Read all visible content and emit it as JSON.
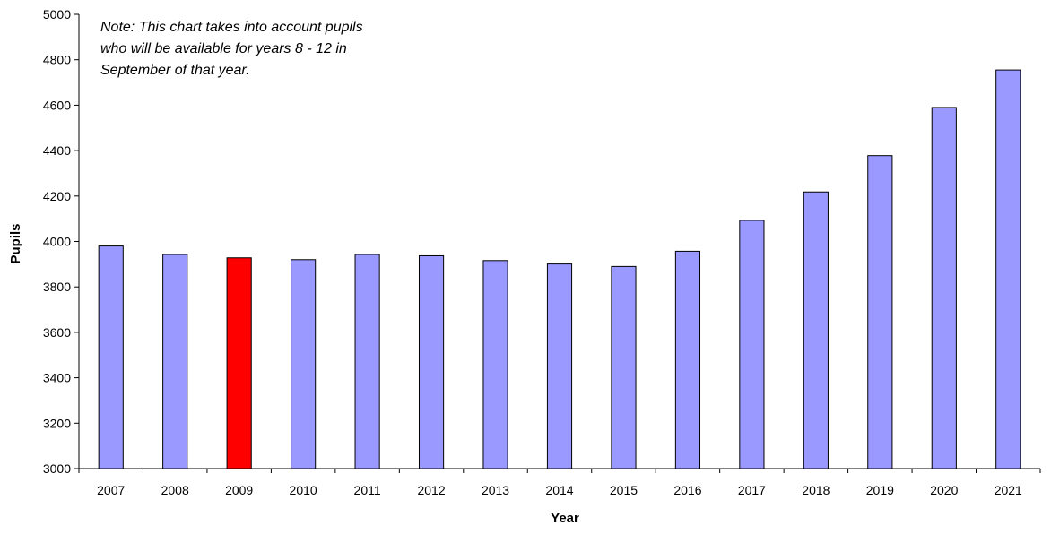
{
  "chart_data": {
    "type": "bar",
    "title": "",
    "xlabel": "Year",
    "ylabel": "Pupils",
    "ylim": [
      3000,
      5000
    ],
    "ytick_step": 200,
    "yticks": [
      "3000",
      "3200",
      "3400",
      "3600",
      "3800",
      "4000",
      "4200",
      "4400",
      "4600",
      "4800",
      "5000"
    ],
    "grid": false,
    "legend": "none",
    "categories": [
      "2007",
      "2008",
      "2009",
      "2010",
      "2011",
      "2012",
      "2013",
      "2014",
      "2015",
      "2016",
      "2017",
      "2018",
      "2019",
      "2020",
      "2021"
    ],
    "values": [
      3980,
      3943,
      3928,
      3920,
      3943,
      3937,
      3916,
      3901,
      3890,
      3957,
      4093,
      4218,
      4378,
      4590,
      4755
    ],
    "bar_color": "#9999ff",
    "highlight_color": "#ff0000",
    "highlight_category": "2009",
    "annotation": [
      "Note: This chart takes into account pupils",
      "who will be available for years 8 - 12 in",
      "September of that year."
    ]
  }
}
